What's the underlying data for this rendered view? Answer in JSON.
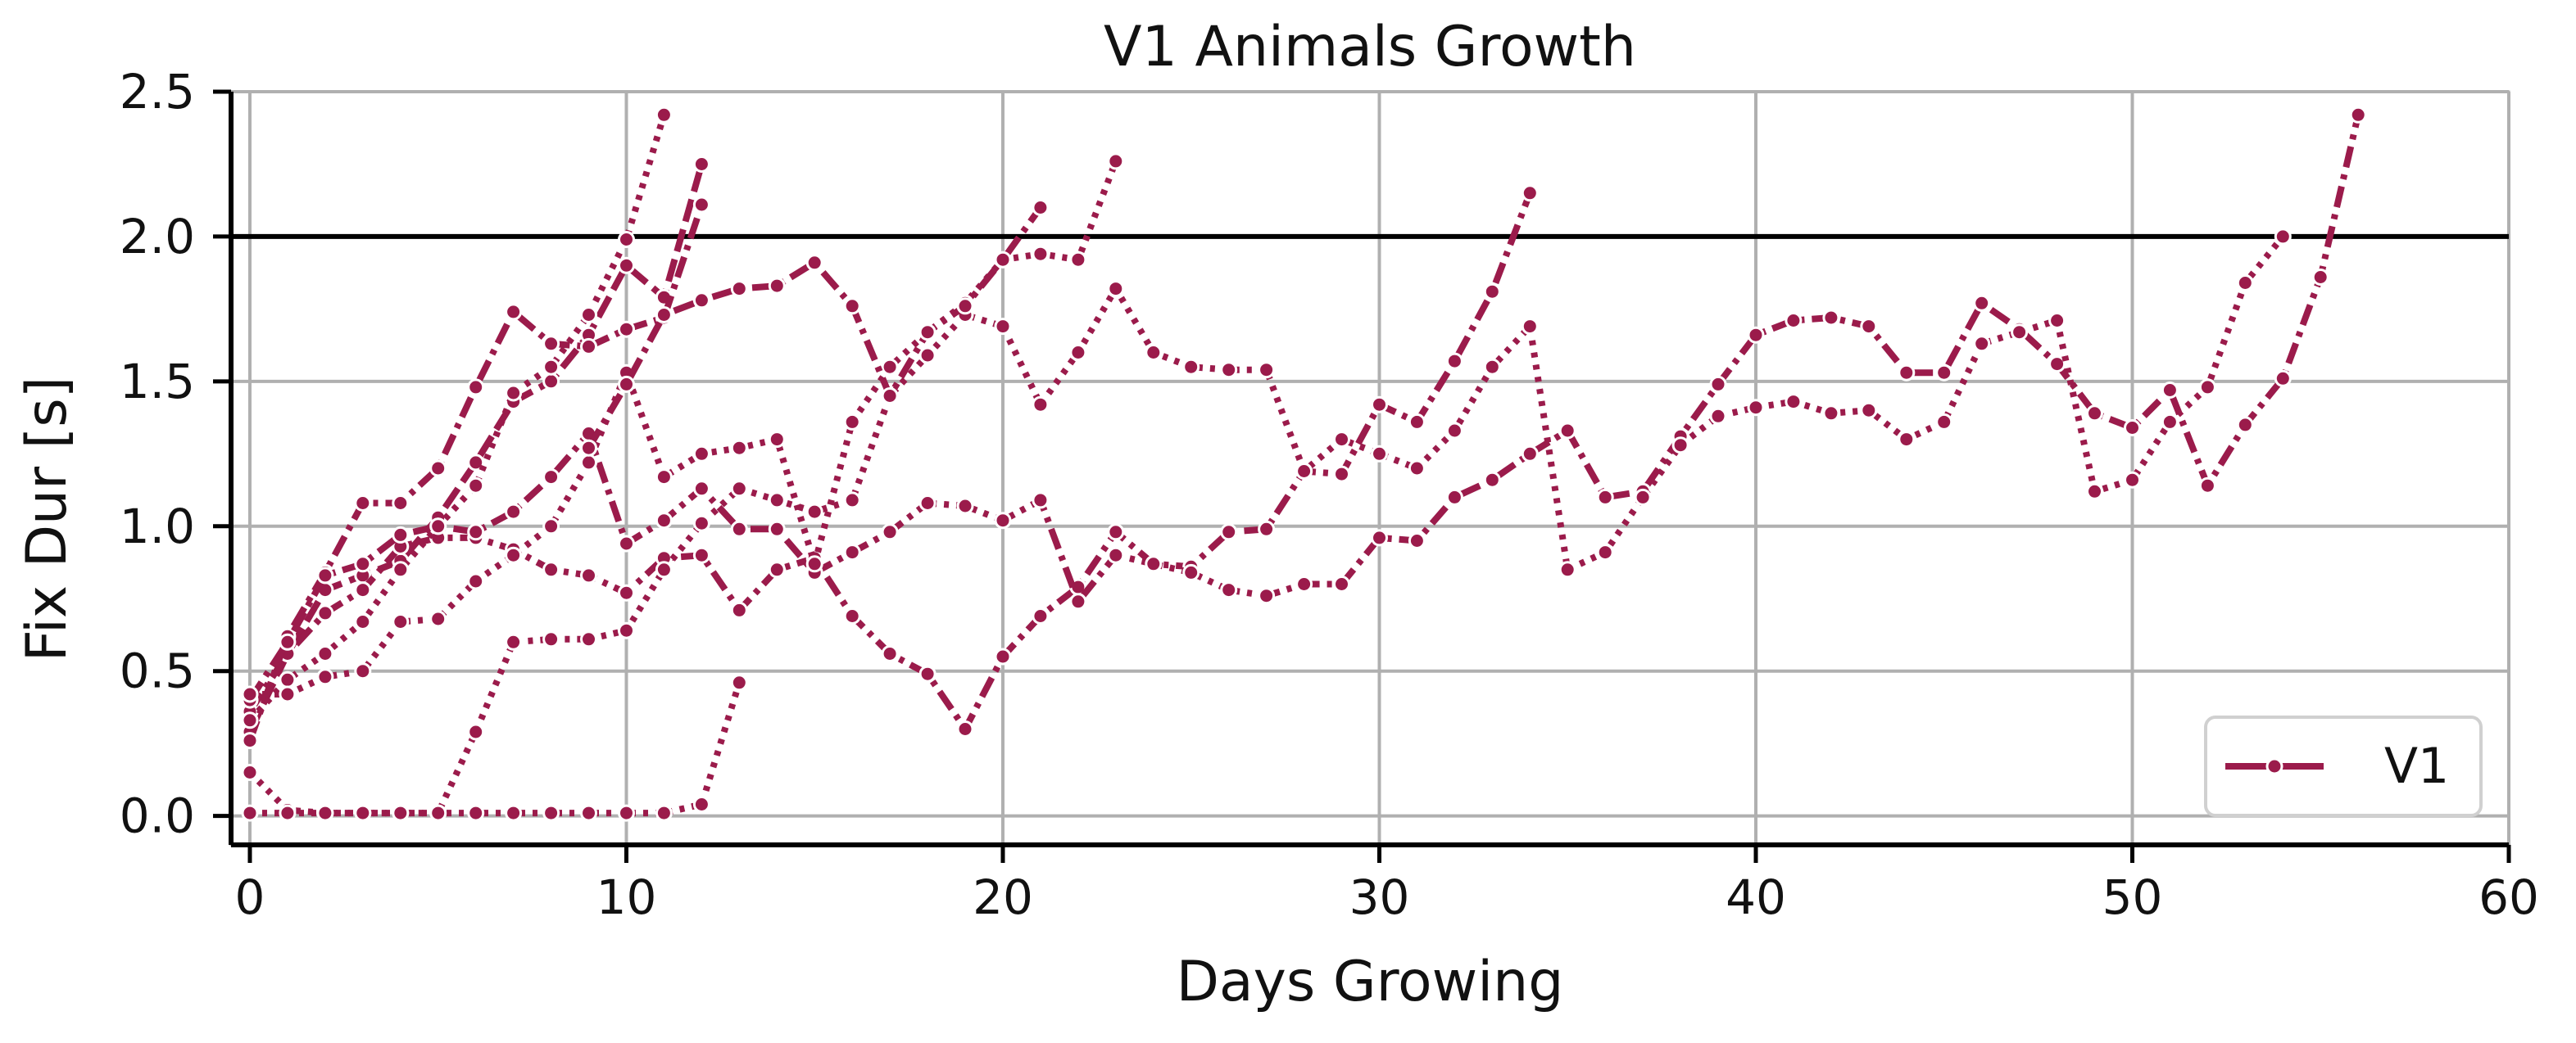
{
  "chart_data": {
    "type": "line",
    "title": "V1 Animals Growth",
    "xlabel": "Days Growing",
    "ylabel": "Fix Dur [s]",
    "xlim": [
      -0.5,
      60
    ],
    "ylim": [
      -0.1,
      2.5
    ],
    "xticks": [
      0,
      10,
      20,
      30,
      40,
      50,
      60
    ],
    "yticks": [
      0.0,
      0.5,
      1.0,
      1.5,
      2.0,
      2.5
    ],
    "xtick_labels": [
      "0",
      "10",
      "20",
      "30",
      "40",
      "50",
      "60"
    ],
    "ytick_labels": [
      "0.0",
      "0.5",
      "1.0",
      "1.5",
      "2.0",
      "2.5"
    ],
    "grid": true,
    "hline": 2.0,
    "legend": {
      "label": "V1",
      "position": "bottom-right"
    },
    "color": "#9b1b4b",
    "series": [
      {
        "dash": "dashed",
        "points": [
          [
            0,
            0.29
          ],
          [
            1,
            0.56
          ],
          [
            2,
            0.78
          ],
          [
            3,
            0.83
          ],
          [
            4,
            0.88
          ],
          [
            5,
            1.03
          ],
          [
            6,
            1.22
          ],
          [
            7,
            1.43
          ],
          [
            8,
            1.5
          ],
          [
            9,
            1.66
          ],
          [
            10,
            1.9
          ],
          [
            11,
            1.79
          ],
          [
            12,
            2.25
          ]
        ]
      },
      {
        "dash": "dashdot",
        "points": [
          [
            0,
            0.36
          ],
          [
            1,
            0.56
          ],
          [
            2,
            0.7
          ],
          [
            3,
            0.78
          ],
          [
            4,
            0.93
          ],
          [
            5,
            0.96
          ],
          [
            6,
            0.96
          ],
          [
            7,
            0.92
          ],
          [
            8,
            0.85
          ],
          [
            9,
            0.83
          ],
          [
            10,
            0.77
          ],
          [
            11,
            0.89
          ],
          [
            12,
            0.9
          ],
          [
            13,
            0.71
          ],
          [
            14,
            0.85
          ],
          [
            15,
            0.89
          ],
          [
            16,
            0.69
          ],
          [
            17,
            0.56
          ],
          [
            18,
            0.49
          ],
          [
            19,
            0.3
          ],
          [
            20,
            0.55
          ],
          [
            21,
            0.69
          ],
          [
            22,
            0.79
          ],
          [
            23,
            0.98
          ],
          [
            24,
            0.87
          ],
          [
            25,
            0.86
          ],
          [
            26,
            0.98
          ],
          [
            27,
            0.99
          ],
          [
            28,
            1.19
          ],
          [
            29,
            1.18
          ],
          [
            30,
            1.42
          ],
          [
            31,
            1.36
          ],
          [
            32,
            1.57
          ],
          [
            33,
            1.81
          ],
          [
            34,
            2.15
          ]
        ]
      },
      {
        "dash": "dashdot",
        "points": [
          [
            0,
            0.26
          ],
          [
            1,
            0.62
          ],
          [
            2,
            0.84
          ],
          [
            3,
            1.08
          ],
          [
            4,
            1.08
          ],
          [
            5,
            1.2
          ],
          [
            6,
            1.48
          ],
          [
            7,
            1.74
          ],
          [
            8,
            1.63
          ],
          [
            9,
            1.62
          ],
          [
            10,
            1.68
          ],
          [
            11,
            1.72
          ],
          [
            12,
            2.11
          ]
        ]
      },
      {
        "dash": "dotted",
        "points": [
          [
            0,
            0.33
          ],
          [
            1,
            0.47
          ],
          [
            2,
            0.56
          ],
          [
            3,
            0.67
          ],
          [
            4,
            0.85
          ],
          [
            5,
            1.0
          ],
          [
            6,
            1.14
          ],
          [
            7,
            1.46
          ],
          [
            8,
            1.55
          ],
          [
            9,
            1.73
          ],
          [
            10,
            1.99
          ],
          [
            11,
            2.42
          ]
        ]
      },
      {
        "dash": "dashdot",
        "points": [
          [
            0,
            0.4
          ],
          [
            1,
            0.6
          ],
          [
            2,
            0.83
          ],
          [
            3,
            0.87
          ],
          [
            4,
            0.97
          ],
          [
            5,
            1.0
          ],
          [
            6,
            0.98
          ],
          [
            7,
            1.05
          ],
          [
            8,
            1.17
          ],
          [
            9,
            1.32
          ],
          [
            10,
            0.94
          ],
          [
            11,
            1.02
          ],
          [
            12,
            1.13
          ],
          [
            13,
            0.99
          ],
          [
            14,
            0.99
          ],
          [
            15,
            0.84
          ],
          [
            16,
            0.91
          ],
          [
            17,
            0.98
          ],
          [
            18,
            1.08
          ],
          [
            19,
            1.07
          ],
          [
            20,
            1.02
          ],
          [
            21,
            1.09
          ],
          [
            22,
            0.74
          ],
          [
            23,
            0.9
          ],
          [
            24,
            0.87
          ],
          [
            25,
            0.84
          ],
          [
            26,
            0.78
          ],
          [
            27,
            0.76
          ],
          [
            28,
            0.8
          ],
          [
            29,
            0.8
          ],
          [
            30,
            0.96
          ],
          [
            31,
            0.95
          ],
          [
            32,
            1.1
          ],
          [
            33,
            1.16
          ],
          [
            34,
            1.25
          ],
          [
            35,
            1.33
          ],
          [
            36,
            1.1
          ],
          [
            37,
            1.12
          ],
          [
            38,
            1.31
          ],
          [
            39,
            1.49
          ],
          [
            40,
            1.66
          ],
          [
            41,
            1.71
          ],
          [
            42,
            1.72
          ],
          [
            43,
            1.69
          ],
          [
            44,
            1.53
          ],
          [
            45,
            1.53
          ],
          [
            46,
            1.77
          ],
          [
            47,
            1.68
          ],
          [
            48,
            1.56
          ],
          [
            49,
            1.39
          ],
          [
            50,
            1.34
          ],
          [
            51,
            1.47
          ],
          [
            52,
            1.14
          ],
          [
            53,
            1.35
          ],
          [
            54,
            1.51
          ],
          [
            55,
            1.86
          ],
          [
            56,
            2.42
          ]
        ]
      },
      {
        "dash": "dotted",
        "points": [
          [
            0,
            0.42
          ],
          [
            1,
            0.42
          ],
          [
            2,
            0.48
          ],
          [
            3,
            0.5
          ],
          [
            4,
            0.67
          ],
          [
            5,
            0.68
          ],
          [
            6,
            0.81
          ],
          [
            7,
            0.9
          ],
          [
            8,
            1.0
          ],
          [
            9,
            1.22
          ],
          [
            10,
            1.53
          ],
          [
            11,
            1.17
          ],
          [
            12,
            1.25
          ],
          [
            13,
            1.27
          ],
          [
            14,
            1.3
          ],
          [
            15,
            0.87
          ],
          [
            16,
            1.36
          ],
          [
            17,
            1.55
          ],
          [
            18,
            1.67
          ],
          [
            19,
            1.77
          ],
          [
            20,
            1.92
          ],
          [
            21,
            1.94
          ],
          [
            22,
            1.92
          ],
          [
            23,
            2.26
          ]
        ]
      },
      {
        "dash": "dotted",
        "points": [
          [
            0,
            0.15
          ],
          [
            1,
            0.02
          ],
          [
            2,
            0.01
          ],
          [
            3,
            0.01
          ],
          [
            4,
            0.01
          ],
          [
            5,
            0.01
          ],
          [
            6,
            0.29
          ],
          [
            7,
            0.6
          ],
          [
            8,
            0.61
          ],
          [
            9,
            0.61
          ],
          [
            10,
            0.64
          ],
          [
            11,
            0.85
          ],
          [
            12,
            1.01
          ],
          [
            13,
            1.13
          ],
          [
            14,
            1.09
          ],
          [
            15,
            1.05
          ],
          [
            16,
            1.09
          ],
          [
            17,
            1.45
          ],
          [
            18,
            1.59
          ],
          [
            19,
            1.73
          ],
          [
            20,
            1.69
          ],
          [
            21,
            1.42
          ],
          [
            22,
            1.6
          ],
          [
            23,
            1.82
          ],
          [
            24,
            1.6
          ],
          [
            25,
            1.55
          ],
          [
            26,
            1.54
          ],
          [
            27,
            1.54
          ],
          [
            28,
            1.19
          ],
          [
            29,
            1.3
          ],
          [
            30,
            1.25
          ],
          [
            31,
            1.2
          ],
          [
            32,
            1.33
          ],
          [
            33,
            1.55
          ],
          [
            34,
            1.69
          ],
          [
            35,
            0.85
          ],
          [
            36,
            0.91
          ],
          [
            37,
            1.1
          ],
          [
            38,
            1.28
          ],
          [
            39,
            1.38
          ],
          [
            40,
            1.41
          ],
          [
            41,
            1.43
          ],
          [
            42,
            1.39
          ],
          [
            43,
            1.4
          ],
          [
            44,
            1.3
          ],
          [
            45,
            1.36
          ],
          [
            46,
            1.63
          ],
          [
            47,
            1.67
          ],
          [
            48,
            1.71
          ],
          [
            49,
            1.12
          ],
          [
            50,
            1.16
          ],
          [
            51,
            1.36
          ],
          [
            52,
            1.48
          ],
          [
            53,
            1.84
          ],
          [
            54,
            2.0
          ]
        ]
      },
      {
        "dash": "dotted",
        "points": [
          [
            0,
            0.01
          ],
          [
            1,
            0.01
          ],
          [
            2,
            0.01
          ],
          [
            3,
            0.01
          ],
          [
            4,
            0.01
          ],
          [
            5,
            0.01
          ],
          [
            6,
            0.01
          ],
          [
            7,
            0.01
          ],
          [
            8,
            0.01
          ],
          [
            9,
            0.01
          ],
          [
            10,
            0.01
          ],
          [
            11,
            0.01
          ],
          [
            12,
            0.04
          ],
          [
            13,
            0.46
          ]
        ]
      },
      {
        "dash": "dashdot",
        "points": [
          [
            9,
            1.27
          ],
          [
            10,
            1.49
          ],
          [
            11,
            1.73
          ],
          [
            12,
            1.78
          ],
          [
            13,
            1.82
          ],
          [
            14,
            1.83
          ],
          [
            15,
            1.91
          ],
          [
            16,
            1.76
          ],
          [
            17,
            1.45
          ],
          [
            18,
            1.67
          ],
          [
            19,
            1.76
          ],
          [
            20,
            1.92
          ],
          [
            21,
            2.1
          ]
        ]
      }
    ]
  }
}
